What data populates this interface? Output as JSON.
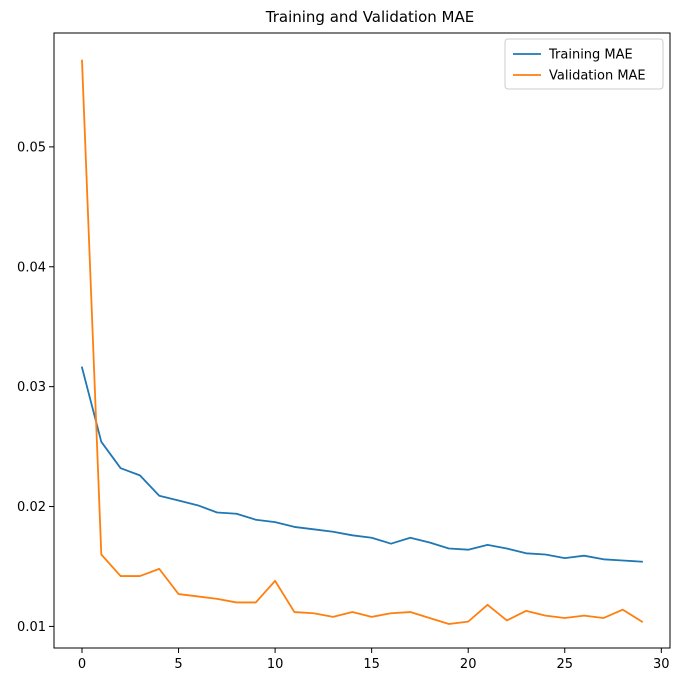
{
  "chart_data": {
    "type": "line",
    "title": "Training and Validation MAE",
    "xlabel": "",
    "ylabel": "",
    "xlim": [
      -1.45,
      30.45
    ],
    "ylim": [
      0.0082,
      0.0595
    ],
    "xticks": [
      0,
      5,
      10,
      15,
      20,
      25,
      30
    ],
    "xtick_labels": [
      "0",
      "5",
      "10",
      "15",
      "20",
      "25",
      "30"
    ],
    "yticks": [
      0.01,
      0.02,
      0.03,
      0.04,
      0.05
    ],
    "ytick_labels": [
      "0.01",
      "0.02",
      "0.03",
      "0.04",
      "0.05"
    ],
    "grid": false,
    "legend_position": "top-right",
    "x": [
      0,
      1,
      2,
      3,
      4,
      5,
      6,
      7,
      8,
      9,
      10,
      11,
      12,
      13,
      14,
      15,
      16,
      17,
      18,
      19,
      20,
      21,
      22,
      23,
      24,
      25,
      26,
      27,
      28,
      29
    ],
    "series": [
      {
        "name": "Training MAE",
        "color": "#1f77b4",
        "values": [
          0.0316,
          0.0254,
          0.0232,
          0.0226,
          0.0209,
          0.0205,
          0.0201,
          0.0195,
          0.0194,
          0.0189,
          0.0187,
          0.0183,
          0.0181,
          0.0179,
          0.0176,
          0.0174,
          0.0169,
          0.0174,
          0.017,
          0.0165,
          0.0164,
          0.0168,
          0.0165,
          0.0161,
          0.016,
          0.0157,
          0.0159,
          0.0156,
          0.0155,
          0.0154
        ]
      },
      {
        "name": "Validation MAE",
        "color": "#ff7f0e",
        "values": [
          0.0572,
          0.016,
          0.0142,
          0.0142,
          0.0148,
          0.0127,
          0.0125,
          0.0123,
          0.012,
          0.012,
          0.0138,
          0.0112,
          0.0111,
          0.0108,
          0.0112,
          0.0108,
          0.0111,
          0.0112,
          0.0107,
          0.0102,
          0.0104,
          0.0118,
          0.0105,
          0.0113,
          0.0109,
          0.0107,
          0.0109,
          0.0107,
          0.0114,
          0.0104
        ]
      }
    ]
  }
}
